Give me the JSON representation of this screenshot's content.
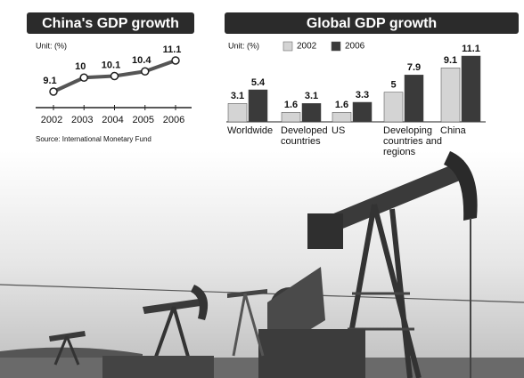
{
  "chart_data": [
    {
      "type": "line",
      "title": "China's GDP growth",
      "unit": "Unit: (%)",
      "categories": [
        "2002",
        "2003",
        "2004",
        "2005",
        "2006"
      ],
      "values": [
        9.1,
        10,
        10.1,
        10.4,
        11.1
      ],
      "color": "#555555",
      "source": "Source: International Monetary Fund"
    },
    {
      "type": "bar",
      "title": "Global GDP growth",
      "unit": "Unit: (%)",
      "categories": [
        "Worldwide",
        "Developed countries",
        "US",
        "Developing countries and regions",
        "China"
      ],
      "series": [
        {
          "name": "2002",
          "color": "#d4d4d4",
          "values": [
            3.1,
            1.6,
            1.6,
            5,
            9.1
          ]
        },
        {
          "name": "2006",
          "color": "#3a3a3a",
          "values": [
            5.4,
            3.1,
            3.3,
            7.9,
            11.1
          ]
        }
      ]
    }
  ]
}
